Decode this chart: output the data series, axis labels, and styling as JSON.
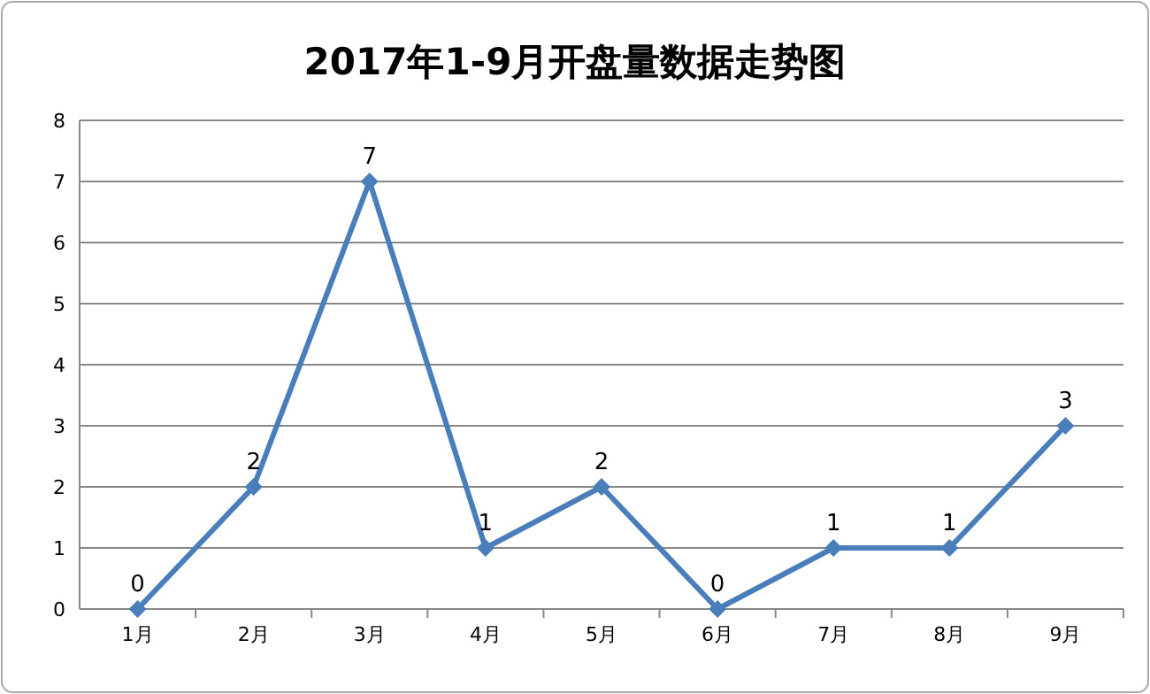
{
  "chart_data": {
    "type": "line",
    "title": "2017年1-9月开盘量数据走势图",
    "categories": [
      "1月",
      "2月",
      "3月",
      "4月",
      "5月",
      "6月",
      "7月",
      "8月",
      "9月"
    ],
    "values": [
      0,
      2,
      7,
      1,
      2,
      0,
      1,
      1,
      3
    ],
    "color": "#4a7ebb",
    "ylim": [
      0,
      8
    ],
    "yticks": [
      0,
      1,
      2,
      3,
      4,
      5,
      6,
      7,
      8
    ],
    "grid": "y",
    "marker": "diamond",
    "data_labels": true,
    "line_style": "solid"
  }
}
